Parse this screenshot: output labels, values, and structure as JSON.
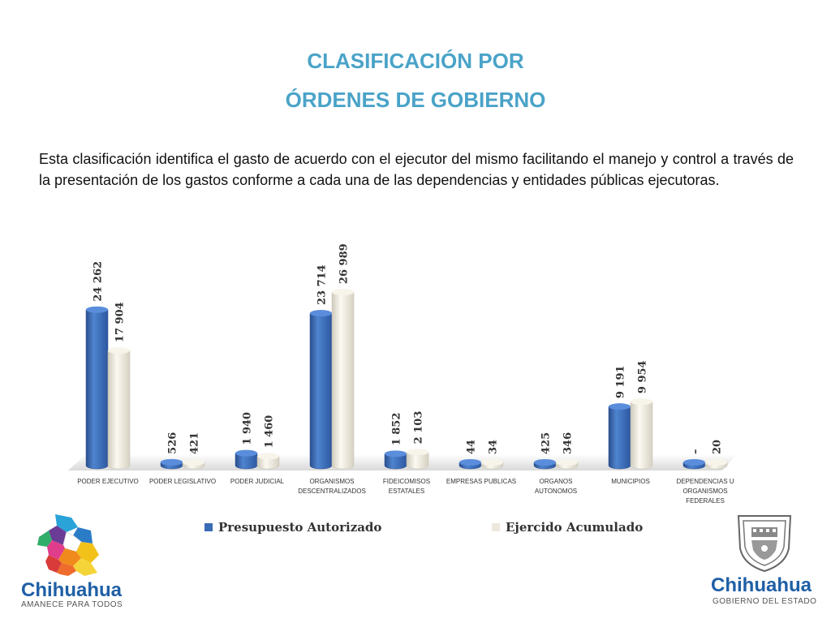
{
  "header": {
    "title_line1": "CLASIFICACIÓN POR",
    "title_line2": "ÓRDENES DE GOBIERNO",
    "description": "Esta clasificación identifica el gasto de acuerdo con el ejecutor del mismo facilitando el manejo y control a través de la presentación de los gastos conforme a cada una de las dependencias y entidades públicas ejecutoras."
  },
  "chart_data": {
    "type": "bar",
    "categories": [
      [
        "PODER EJECUTIVO"
      ],
      [
        "PODER LEGISLATIVO"
      ],
      [
        "PODER JUDICIAL"
      ],
      [
        "ORGANISMOS",
        "DESCENTRALIZADOS"
      ],
      [
        "FIDEICOMISOS",
        "ESTATALES"
      ],
      [
        "EMPRESAS PUBLICAS"
      ],
      [
        "ORGANOS",
        "AUTONOMOS"
      ],
      [
        "MUNICIPIOS"
      ],
      [
        "DEPENDENCIAS U",
        "ORGANISMOS",
        "FEDERALES"
      ]
    ],
    "series": [
      {
        "name": "Presupuesto Autorizado",
        "color": "#3a6bb5",
        "values": [
          24262,
          526,
          1940,
          23714,
          1852,
          44,
          425,
          9191,
          0
        ],
        "labels": [
          "24 262",
          "526",
          "1 940",
          "23 714",
          "1 852",
          "44",
          "425",
          "9 191",
          "–"
        ]
      },
      {
        "name": "Ejercido Acumulado",
        "color": "#ece8db",
        "values": [
          17904,
          421,
          1460,
          26989,
          2103,
          34,
          346,
          9954,
          20
        ],
        "labels": [
          "17 904",
          "421",
          "1 460",
          "26 989",
          "2 103",
          "34",
          "346",
          "9 954",
          "20"
        ]
      }
    ],
    "ylim": [
      0,
      27000
    ],
    "grid": false,
    "legend_position": "bottom"
  },
  "legend": {
    "item1": "Presupuesto Autorizado",
    "item2": "Ejercido Acumulado"
  },
  "logos": {
    "left_name": "Chihuahua",
    "left_tagline": "AMANECE PARA TODOS",
    "right_name": "Chihuahua",
    "right_tagline": "GOBIERNO DEL ESTADO"
  },
  "colors": {
    "title": "#4aa3c8",
    "series_blue": "#3a6bb5",
    "series_cream": "#ece8db",
    "brand_blue": "#1f5fa6"
  }
}
